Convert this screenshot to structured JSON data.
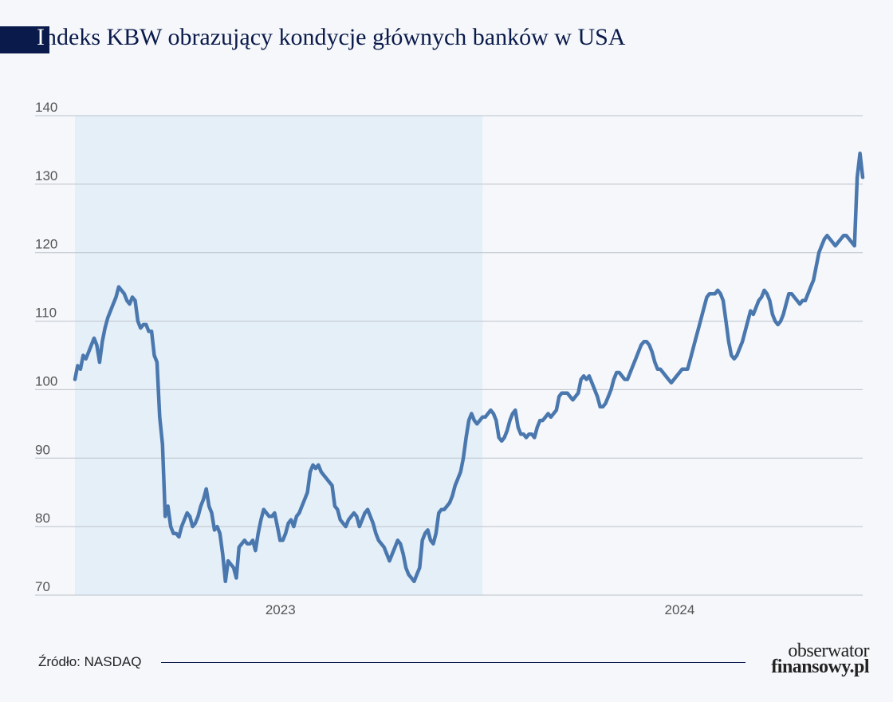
{
  "title": {
    "first": "I",
    "rest": "ndeks KBW obrazujący kondycje głównych banków w USA"
  },
  "source": "Źródło: NASDAQ",
  "logo": {
    "line1": "obserwator",
    "line2": "finansowy.pl"
  },
  "colors": {
    "line": "#4a78ae",
    "shade": "#e5eff8",
    "grid": "#bcc3cc",
    "title": "#0a1a4a"
  },
  "chart_data": {
    "type": "line",
    "series": [
      {
        "values": [
          101.5,
          103.5,
          103,
          105,
          104.5,
          105.5,
          106.5,
          107.5,
          106.5,
          104,
          107,
          109,
          110.5,
          111.5,
          112.5,
          113.5,
          115,
          114.5,
          114,
          113,
          112.5,
          113.5,
          113,
          110,
          109,
          109.5,
          109.5,
          108.5,
          108.5,
          105,
          104,
          96,
          92,
          81.5,
          83,
          80,
          79,
          79,
          78.5,
          80,
          81,
          82,
          81.5,
          80,
          80.5,
          81.5,
          83,
          84,
          85.5,
          83,
          82,
          79.5,
          80,
          79,
          76,
          72,
          75,
          74.5,
          74,
          72.5,
          77,
          77.5,
          78,
          77.5,
          77.5,
          78,
          76.5,
          79,
          81,
          82.5,
          82,
          81.5,
          81.5,
          82,
          80,
          78,
          78,
          79,
          80.5,
          81,
          80,
          81.5,
          82,
          83,
          84,
          85,
          88,
          89,
          88.5,
          89,
          88,
          87.5,
          87,
          86.5,
          86,
          83,
          82.5,
          81,
          80.5,
          80,
          81,
          81.5,
          82,
          81.5,
          80,
          81,
          82,
          82.5,
          81.5,
          80.5,
          79,
          78,
          77.5,
          77,
          76,
          75,
          76,
          77,
          78,
          77.5,
          76,
          74,
          73,
          72.5,
          72,
          73,
          74,
          78,
          79,
          79.5,
          78,
          77.5,
          79,
          82,
          82.5,
          82.5,
          83,
          83.5,
          84.5,
          86,
          87,
          88,
          90,
          93,
          95.5,
          96.5,
          95.5,
          95,
          95.5,
          96,
          96,
          96.5,
          97,
          96.5,
          95.5,
          93,
          92.5,
          93,
          94,
          95.5,
          96.5,
          97,
          94.5,
          93.5,
          93.5,
          93,
          93.5,
          93.5,
          93,
          94.5,
          95.5,
          95.5,
          96,
          96.5,
          96,
          96.5,
          97,
          99,
          99.5,
          99.5,
          99.5,
          99,
          98.5,
          99,
          99.5,
          101.5,
          102,
          101.5,
          102,
          101,
          100,
          99,
          97.5,
          97.5,
          98,
          99,
          100,
          101.5,
          102.5,
          102.5,
          102,
          101.5,
          101.5,
          102.5,
          103.5,
          104.5,
          105.5,
          106.5,
          107,
          107,
          106.5,
          105.5,
          104,
          103,
          103,
          102.5,
          102,
          101.5,
          101,
          101.5,
          102,
          102.5,
          103,
          103,
          103,
          104.5,
          106,
          107.5,
          109,
          110.5,
          112,
          113.5,
          114,
          114,
          114,
          114.5,
          114,
          113,
          110,
          107,
          105,
          104.5,
          105,
          106,
          107,
          108.5,
          110,
          111.5,
          111,
          112,
          113,
          113.5,
          114.5,
          114,
          113,
          111,
          110,
          109.5,
          110,
          111,
          112.5,
          114,
          114,
          113.5,
          113,
          112.5,
          113,
          113,
          114,
          115,
          116,
          118,
          120,
          121,
          122,
          122.5,
          122,
          121.5,
          121,
          121.5,
          122,
          122.5,
          122.5,
          122,
          121.5,
          121,
          131,
          134.5,
          131
        ]
      }
    ],
    "xlabels": [
      "2023",
      "2024"
    ],
    "yticks": [
      70,
      80,
      90,
      100,
      110,
      120,
      130,
      140
    ],
    "ylim": [
      70,
      140
    ],
    "shaded_range": [
      0,
      149
    ],
    "grid": true
  }
}
